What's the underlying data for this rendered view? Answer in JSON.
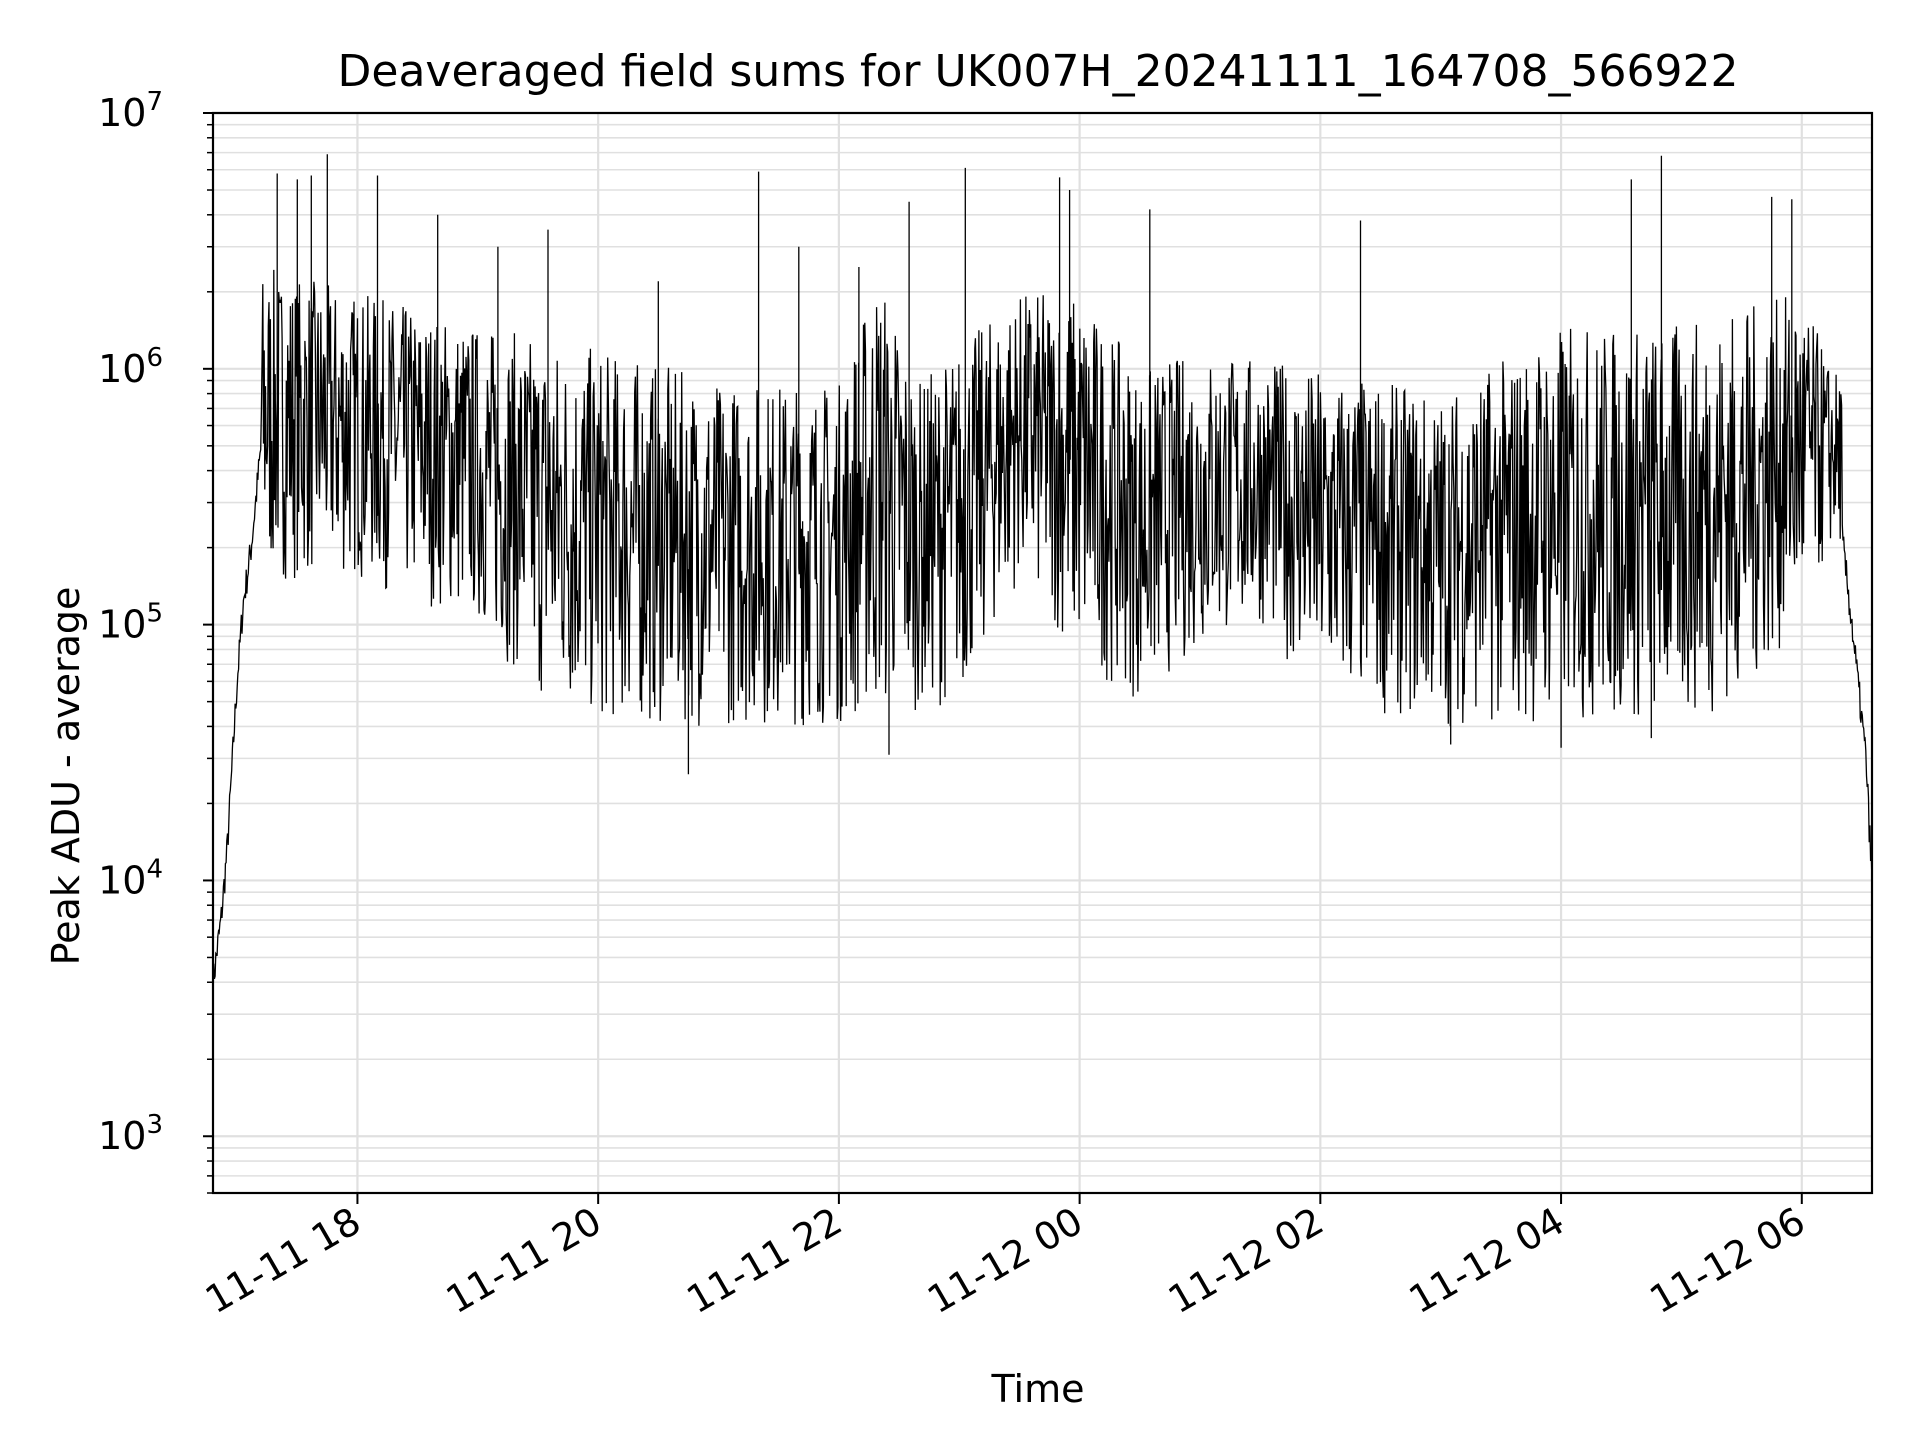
{
  "chart_data": {
    "type": "line",
    "title": "Deaveraged field sums for UK007H_20241111_164708_566922",
    "xlabel": "Time",
    "ylabel": "Peak ADU - average",
    "x_range": [
      "2024-11-11T16:48",
      "2024-11-12T06:35"
    ],
    "ylim": [
      600,
      10000000
    ],
    "yscale": "log",
    "grid": true,
    "line_color": "#000000",
    "grid_color": "#e0e0e0",
    "x_ticks": [
      {
        "value": "2024-11-11T18:00",
        "label": "11-11 18"
      },
      {
        "value": "2024-11-11T20:00",
        "label": "11-11 20"
      },
      {
        "value": "2024-11-11T22:00",
        "label": "11-11 22"
      },
      {
        "value": "2024-11-12T00:00",
        "label": "11-12 00"
      },
      {
        "value": "2024-11-12T02:00",
        "label": "11-12 02"
      },
      {
        "value": "2024-11-12T04:00",
        "label": "11-12 04"
      },
      {
        "value": "2024-11-12T06:00",
        "label": "11-12 06"
      }
    ],
    "y_ticks": [
      {
        "value": 1000,
        "base": "10",
        "exp": "3"
      },
      {
        "value": 10000,
        "base": "10",
        "exp": "4"
      },
      {
        "value": 100000,
        "base": "10",
        "exp": "5"
      },
      {
        "value": 1000000,
        "base": "10",
        "exp": "6"
      },
      {
        "value": 10000000,
        "base": "10",
        "exp": "7"
      }
    ],
    "series": [
      {
        "points": [
          [
            "2024-11-11T16:48",
            4000
          ],
          [
            "2024-11-11T16:52",
            7000
          ],
          [
            "2024-11-11T16:55",
            13000
          ],
          [
            "2024-11-11T17:00",
            60000
          ],
          [
            "2024-11-11T17:03",
            120000
          ],
          [
            "2024-11-11T17:07",
            200000
          ],
          [
            "2024-11-11T17:12",
            500000
          ],
          [
            "2024-11-11T17:20",
            750000
          ],
          [
            "2024-11-11T17:30",
            900000
          ],
          [
            "2024-11-11T17:45",
            900000
          ],
          [
            "2024-11-11T18:00",
            850000
          ],
          [
            "2024-11-11T18:30",
            750000
          ],
          [
            "2024-11-11T19:00",
            500000
          ],
          [
            "2024-11-11T19:30",
            300000
          ],
          [
            "2024-11-11T20:00",
            180000
          ],
          [
            "2024-11-11T21:00",
            160000
          ],
          [
            "2024-11-11T22:00",
            170000
          ],
          [
            "2024-11-11T22:20",
            900000
          ],
          [
            "2024-11-11T22:30",
            160000
          ],
          [
            "2024-11-11T23:00",
            160000
          ],
          [
            "2024-11-11T23:20",
            200000
          ],
          [
            "2024-11-11T23:30",
            700000
          ],
          [
            "2024-11-12T00:00",
            600000
          ],
          [
            "2024-11-12T00:20",
            150000
          ],
          [
            "2024-11-12T00:40",
            400000
          ],
          [
            "2024-11-12T01:00",
            500000
          ],
          [
            "2024-11-12T01:30",
            400000
          ],
          [
            "2024-11-12T02:00",
            150000
          ],
          [
            "2024-11-12T02:30",
            120000
          ],
          [
            "2024-11-12T03:00",
            100000
          ],
          [
            "2024-11-12T03:30",
            100000
          ],
          [
            "2024-11-12T04:00",
            120000
          ],
          [
            "2024-11-12T04:30",
            130000
          ],
          [
            "2024-11-12T05:00",
            140000
          ],
          [
            "2024-11-12T05:30",
            200000
          ],
          [
            "2024-11-12T06:00",
            450000
          ],
          [
            "2024-11-12T06:15",
            500000
          ],
          [
            "2024-11-12T06:25",
            100000
          ],
          [
            "2024-11-12T06:32",
            30000
          ],
          [
            "2024-11-12T06:35",
            10000
          ]
        ],
        "trough_envelope": [
          [
            "2024-11-11T17:15",
            150000
          ],
          [
            "2024-11-11T18:00",
            150000
          ],
          [
            "2024-11-11T19:00",
            100000
          ],
          [
            "2024-11-11T19:30",
            50000
          ],
          [
            "2024-11-11T20:00",
            40000
          ],
          [
            "2024-11-11T21:00",
            40000
          ],
          [
            "2024-11-11T22:00",
            40000
          ],
          [
            "2024-11-11T22:30",
            45000
          ],
          [
            "2024-11-11T23:00",
            50000
          ],
          [
            "2024-11-11T23:30",
            150000
          ],
          [
            "2024-11-12T00:00",
            70000
          ],
          [
            "2024-11-12T00:30",
            50000
          ],
          [
            "2024-11-12T01:00",
            80000
          ],
          [
            "2024-11-12T01:30",
            100000
          ],
          [
            "2024-11-12T02:00",
            50000
          ],
          [
            "2024-11-12T03:00",
            40000
          ],
          [
            "2024-11-12T04:00",
            40000
          ],
          [
            "2024-11-12T05:00",
            40000
          ],
          [
            "2024-11-12T05:30",
            50000
          ],
          [
            "2024-11-12T06:00",
            100000
          ],
          [
            "2024-11-12T06:15",
            200000
          ]
        ],
        "peak_envelope": [
          [
            "2024-11-11T17:15",
            2500000
          ],
          [
            "2024-11-11T18:00",
            2000000
          ],
          [
            "2024-11-11T19:00",
            1500000
          ],
          [
            "2024-11-11T20:00",
            1200000
          ],
          [
            "2024-11-11T21:00",
            900000
          ],
          [
            "2024-11-11T22:00",
            900000
          ],
          [
            "2024-11-11T22:20",
            2500000
          ],
          [
            "2024-11-11T22:40",
            900000
          ],
          [
            "2024-11-11T23:30",
            2000000
          ],
          [
            "2024-11-12T00:00",
            2000000
          ],
          [
            "2024-11-12T00:30",
            1000000
          ],
          [
            "2024-11-12T01:00",
            1200000
          ],
          [
            "2024-11-12T02:00",
            1000000
          ],
          [
            "2024-11-12T03:00",
            800000
          ],
          [
            "2024-11-12T04:00",
            1500000
          ],
          [
            "2024-11-12T05:00",
            1500000
          ],
          [
            "2024-11-12T06:00",
            2000000
          ],
          [
            "2024-11-12T06:15",
            1000000
          ]
        ],
        "spikes": [
          [
            "2024-11-11T17:20",
            5800000
          ],
          [
            "2024-11-11T17:30",
            5500000
          ],
          [
            "2024-11-11T17:37",
            5700000
          ],
          [
            "2024-11-11T17:45",
            6900000
          ],
          [
            "2024-11-11T18:10",
            5700000
          ],
          [
            "2024-11-11T18:40",
            4000000
          ],
          [
            "2024-11-11T19:10",
            3000000
          ],
          [
            "2024-11-11T19:35",
            3500000
          ],
          [
            "2024-11-11T20:30",
            2200000
          ],
          [
            "2024-11-11T21:20",
            5900000
          ],
          [
            "2024-11-11T21:40",
            3000000
          ],
          [
            "2024-11-11T22:10",
            2500000
          ],
          [
            "2024-11-11T22:35",
            4500000
          ],
          [
            "2024-11-11T23:03",
            6100000
          ],
          [
            "2024-11-11T23:50",
            5600000
          ],
          [
            "2024-11-11T23:55",
            5000000
          ],
          [
            "2024-11-12T00:35",
            4200000
          ],
          [
            "2024-11-12T02:20",
            3800000
          ],
          [
            "2024-11-12T04:35",
            5500000
          ],
          [
            "2024-11-12T04:50",
            6800000
          ],
          [
            "2024-11-12T05:45",
            4700000
          ],
          [
            "2024-11-12T05:55",
            4600000
          ]
        ],
        "dips": [
          [
            "2024-11-11T20:45",
            26000
          ],
          [
            "2024-11-11T22:25",
            31000
          ],
          [
            "2024-11-12T03:05",
            34000
          ],
          [
            "2024-11-12T04:00",
            33000
          ],
          [
            "2024-11-12T04:45",
            36000
          ]
        ]
      }
    ]
  }
}
